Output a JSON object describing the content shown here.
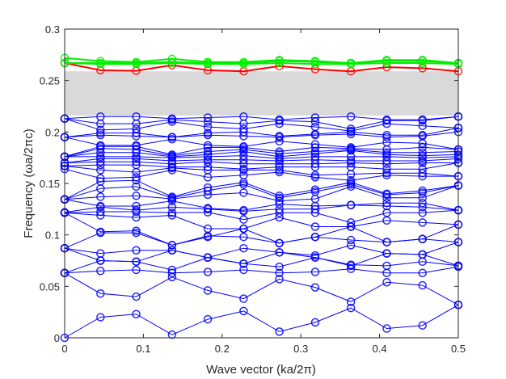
{
  "chart_data": {
    "type": "line",
    "xlabel": "Wave vector (ka/2π)",
    "ylabel": "Frequency (ωa/2πc)",
    "xlim": [
      0,
      0.5
    ],
    "ylim": [
      0,
      0.3
    ],
    "xticks": [
      "0",
      "0.1",
      "0.2",
      "0.3",
      "0.4",
      "0.5"
    ],
    "yticks": [
      "0",
      "0.05",
      "0.1",
      "0.15",
      "0.2",
      "0.25",
      "0.3"
    ],
    "grid": false,
    "marker": "circle",
    "band_gap": {
      "from": 0.216,
      "to": 0.259,
      "color": "#d9d9d9"
    },
    "x": [
      0,
      0.0455,
      0.0909,
      0.1364,
      0.1818,
      0.2273,
      0.2727,
      0.3182,
      0.3636,
      0.4091,
      0.4545,
      0.5
    ],
    "series": [
      {
        "color": "#0000ff",
        "values": [
          0.0,
          0.02,
          0.023,
          0.003,
          0.018,
          0.026,
          0.006,
          0.015,
          0.029,
          0.009,
          0.012,
          0.032
        ]
      },
      {
        "color": "#0000ff",
        "values": [
          0.063,
          0.043,
          0.04,
          0.059,
          0.046,
          0.038,
          0.057,
          0.049,
          0.035,
          0.054,
          0.051,
          0.032
        ]
      },
      {
        "color": "#0000ff",
        "values": [
          0.063,
          0.065,
          0.066,
          0.063,
          0.064,
          0.066,
          0.063,
          0.064,
          0.067,
          0.063,
          0.063,
          0.069
        ]
      },
      {
        "color": "#0000ff",
        "values": [
          0.063,
          0.075,
          0.074,
          0.066,
          0.078,
          0.072,
          0.069,
          0.078,
          0.071,
          0.07,
          0.074,
          0.07
        ]
      },
      {
        "color": "#0000ff",
        "values": [
          0.087,
          0.082,
          0.085,
          0.085,
          0.078,
          0.087,
          0.083,
          0.08,
          0.09,
          0.082,
          0.081,
          0.093
        ]
      },
      {
        "color": "#0000ff",
        "values": [
          0.087,
          0.075,
          0.074,
          0.085,
          0.078,
          0.072,
          0.083,
          0.078,
          0.07,
          0.082,
          0.081,
          0.07
        ]
      },
      {
        "color": "#0000ff",
        "values": [
          0.087,
          0.102,
          0.102,
          0.09,
          0.099,
          0.098,
          0.092,
          0.098,
          0.095,
          0.093,
          0.096,
          0.093
        ]
      },
      {
        "color": "#0000ff",
        "values": [
          0.1215,
          0.103,
          0.104,
          0.09,
          0.098,
          0.106,
          0.092,
          0.098,
          0.108,
          0.093,
          0.096,
          0.11
        ]
      },
      {
        "color": "#0000ff",
        "values": [
          0.1215,
          0.119,
          0.117,
          0.119,
          0.106,
          0.106,
          0.117,
          0.108,
          0.108,
          0.114,
          0.112,
          0.11
        ]
      },
      {
        "color": "#0000ff",
        "values": [
          0.1215,
          0.1225,
          0.1225,
          0.1215,
          0.122,
          0.115,
          0.1215,
          0.1215,
          0.112,
          0.1215,
          0.1215,
          0.124
        ]
      },
      {
        "color": "#0000ff",
        "values": [
          0.122,
          0.127,
          0.124,
          0.127,
          0.125,
          0.123,
          0.125,
          0.125,
          0.129,
          0.128,
          0.127,
          0.124
        ]
      },
      {
        "color": "#0000ff",
        "values": [
          0.1345,
          0.128,
          0.128,
          0.133,
          0.126,
          0.124,
          0.13,
          0.128,
          0.129,
          0.131,
          0.131,
          0.124
        ]
      },
      {
        "color": "#0000ff",
        "values": [
          0.1345,
          0.137,
          0.138,
          0.135,
          0.139,
          0.141,
          0.133,
          0.135,
          0.147,
          0.136,
          0.136,
          0.148
        ]
      },
      {
        "color": "#0000ff",
        "values": [
          0.1345,
          0.145,
          0.147,
          0.136,
          0.143,
          0.149,
          0.136,
          0.142,
          0.149,
          0.139,
          0.141,
          0.148
        ]
      },
      {
        "color": "#0000ff",
        "values": [
          0.1345,
          0.152,
          0.153,
          0.137,
          0.146,
          0.151,
          0.138,
          0.144,
          0.151,
          0.14,
          0.143,
          0.148
        ]
      },
      {
        "color": "#0000ff",
        "values": [
          0.164,
          0.155,
          0.156,
          0.163,
          0.156,
          0.158,
          0.161,
          0.156,
          0.153,
          0.158,
          0.157,
          0.157
        ]
      },
      {
        "color": "#0000ff",
        "values": [
          0.167,
          0.163,
          0.161,
          0.165,
          0.163,
          0.163,
          0.163,
          0.158,
          0.159,
          0.16,
          0.16,
          0.157
        ]
      },
      {
        "color": "#0000ff",
        "values": [
          0.167,
          0.168,
          0.168,
          0.166,
          0.166,
          0.164,
          0.166,
          0.166,
          0.166,
          0.164,
          0.164,
          0.17
        ]
      },
      {
        "color": "#0000ff",
        "values": [
          0.17,
          0.171,
          0.171,
          0.169,
          0.171,
          0.169,
          0.169,
          0.169,
          0.17,
          0.169,
          0.17,
          0.17
        ]
      },
      {
        "color": "#0000ff",
        "values": [
          0.17,
          0.174,
          0.174,
          0.172,
          0.173,
          0.173,
          0.172,
          0.173,
          0.172,
          0.172,
          0.172,
          0.174
        ]
      },
      {
        "color": "#0000ff",
        "values": [
          0.176,
          0.176,
          0.176,
          0.175,
          0.176,
          0.177,
          0.174,
          0.176,
          0.176,
          0.176,
          0.175,
          0.176
        ]
      },
      {
        "color": "#0000ff",
        "values": [
          0.176,
          0.18,
          0.18,
          0.176,
          0.178,
          0.181,
          0.176,
          0.179,
          0.182,
          0.178,
          0.177,
          0.178
        ]
      },
      {
        "color": "#0000ff",
        "values": [
          0.176,
          0.184,
          0.183,
          0.177,
          0.181,
          0.183,
          0.179,
          0.181,
          0.183,
          0.18,
          0.18,
          0.181
        ]
      },
      {
        "color": "#0000ff",
        "values": [
          0.176,
          0.186,
          0.186,
          0.178,
          0.185,
          0.185,
          0.181,
          0.185,
          0.184,
          0.183,
          0.185,
          0.183
        ]
      },
      {
        "color": "#0000ff",
        "values": [
          0.195,
          0.187,
          0.187,
          0.193,
          0.187,
          0.186,
          0.191,
          0.188,
          0.185,
          0.19,
          0.189,
          0.183
        ]
      },
      {
        "color": "#0000ff",
        "values": [
          0.195,
          0.197,
          0.196,
          0.195,
          0.197,
          0.196,
          0.195,
          0.197,
          0.198,
          0.195,
          0.196,
          0.2
        ]
      },
      {
        "color": "#0000ff",
        "values": [
          0.195,
          0.199,
          0.199,
          0.195,
          0.199,
          0.2,
          0.196,
          0.198,
          0.2,
          0.197,
          0.197,
          0.204
        ]
      },
      {
        "color": "#0000ff",
        "values": [
          0.213,
          0.202,
          0.203,
          0.21,
          0.205,
          0.203,
          0.208,
          0.205,
          0.201,
          0.208,
          0.206,
          0.204
        ]
      },
      {
        "color": "#0000ff",
        "values": [
          0.213,
          0.208,
          0.208,
          0.212,
          0.21,
          0.208,
          0.211,
          0.21,
          0.203,
          0.211,
          0.211,
          0.215
        ]
      },
      {
        "color": "#0000ff",
        "values": [
          0.213,
          0.215,
          0.215,
          0.213,
          0.214,
          0.215,
          0.212,
          0.214,
          0.215,
          0.212,
          0.212,
          0.215
        ]
      },
      {
        "color": "#ff0000",
        "values": [
          0.267,
          0.26,
          0.2595,
          0.265,
          0.26,
          0.259,
          0.264,
          0.261,
          0.259,
          0.263,
          0.262,
          0.259
        ]
      },
      {
        "color": "#00ee00",
        "values": [
          0.267,
          0.266,
          0.266,
          0.267,
          0.266,
          0.266,
          0.267,
          0.266,
          0.266,
          0.267,
          0.267,
          0.266
        ]
      },
      {
        "color": "#00ee00",
        "values": [
          0.267,
          0.267,
          0.267,
          0.268,
          0.267,
          0.267,
          0.269,
          0.268,
          0.267,
          0.269,
          0.269,
          0.267
        ]
      },
      {
        "color": "#00ee00",
        "values": [
          0.272,
          0.269,
          0.268,
          0.271,
          0.268,
          0.268,
          0.27,
          0.269,
          0.267,
          0.27,
          0.27,
          0.267
        ]
      }
    ]
  }
}
